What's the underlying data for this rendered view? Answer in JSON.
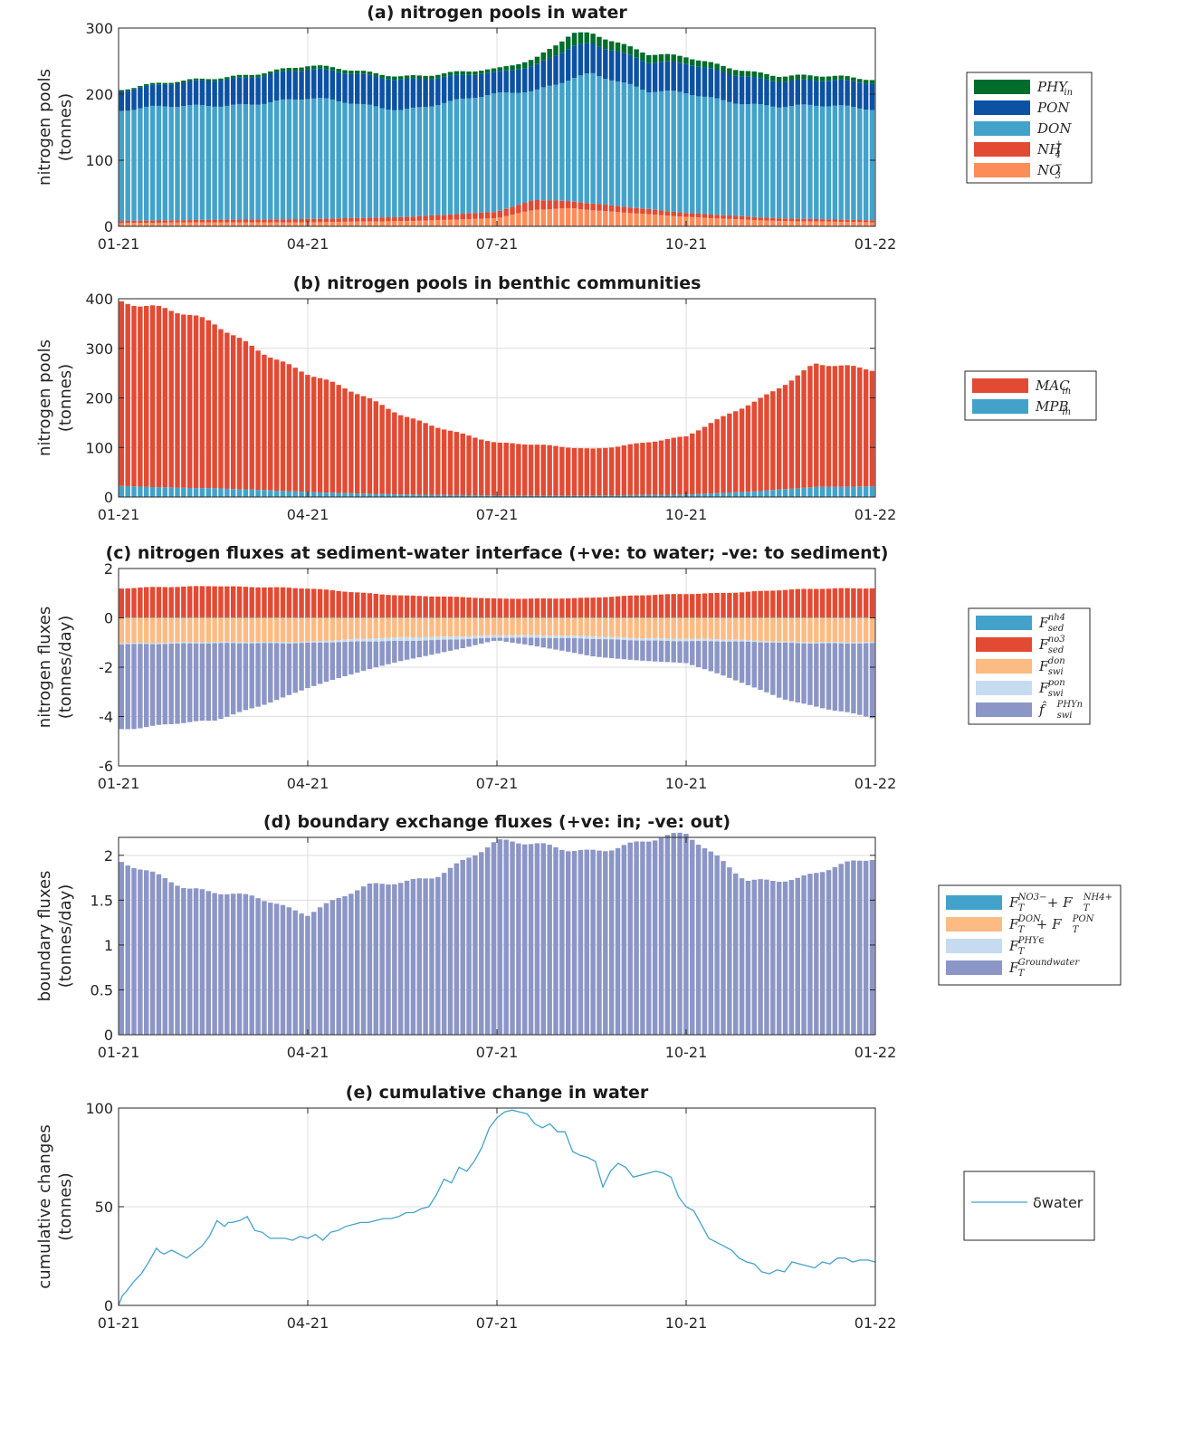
{
  "x_tick_labels": [
    "01-21",
    "04-21",
    "07-21",
    "10-21",
    "01-22"
  ],
  "chart_data": [
    {
      "id": "a",
      "type": "bar",
      "stacked": true,
      "title": "(a) nitrogen pools in water",
      "ylabel": [
        "nitrogen pools",
        "(tonnes)"
      ],
      "ylim": [
        0,
        300
      ],
      "yticks": [
        "0",
        "100",
        "200",
        "300"
      ],
      "grid": true,
      "legend_position": "right",
      "x_knots": [
        0,
        0.125,
        0.25,
        0.375,
        0.5,
        0.55,
        0.6,
        0.625,
        0.7,
        0.75,
        0.875,
        1.0
      ],
      "series": [
        {
          "name": "NO3-",
          "legend_main": "NO",
          "legend_sub": "3",
          "legend_sup": "−",
          "color": "#fc8d59",
          "values": [
            5,
            6,
            6,
            8,
            12,
            25,
            28,
            25,
            18,
            14,
            8,
            6
          ]
        },
        {
          "name": "NH4+",
          "legend_main": "NH",
          "legend_sub": "4",
          "legend_sup": "+",
          "color": "#e34a33",
          "values": [
            3,
            4,
            5,
            6,
            10,
            15,
            10,
            10,
            8,
            6,
            4,
            3
          ]
        },
        {
          "name": "DON",
          "legend_main": "DON",
          "legend_sub": "",
          "legend_sup": "",
          "color": "#43a2ca",
          "values": [
            165,
            175,
            180,
            165,
            175,
            165,
            190,
            200,
            175,
            180,
            170,
            168
          ]
        },
        {
          "name": "PON",
          "legend_main": "PON",
          "legend_sub": "",
          "legend_sup": "",
          "color": "#0c51a3",
          "values": [
            30,
            38,
            45,
            45,
            33,
            38,
            48,
            45,
            45,
            45,
            38,
            40
          ]
        },
        {
          "name": "PHYin",
          "legend_main": "PHY",
          "legend_sub": "in",
          "legend_sup": "",
          "color": "#006d2c",
          "values": [
            2,
            3,
            5,
            5,
            5,
            10,
            20,
            15,
            12,
            10,
            8,
            5
          ]
        }
      ],
      "legend_order": [
        "PHYin",
        "PON",
        "DON",
        "NH4+",
        "NO3-"
      ]
    },
    {
      "id": "b",
      "type": "bar",
      "stacked": true,
      "title": "(b) nitrogen pools in benthic communities",
      "ylabel": [
        "nitrogen pools",
        "(tonnes)"
      ],
      "ylim": [
        0,
        400
      ],
      "yticks": [
        "0",
        "100",
        "200",
        "300",
        "400"
      ],
      "grid": true,
      "legend_position": "right",
      "x_knots": [
        0,
        0.05,
        0.125,
        0.25,
        0.375,
        0.5,
        0.625,
        0.75,
        0.85,
        0.92,
        1.0
      ],
      "series": [
        {
          "name": "MPBin",
          "legend_main": "MPB",
          "legend_sub": "in",
          "legend_sup": "",
          "color": "#43a2ca",
          "values": [
            22,
            20,
            18,
            10,
            5,
            3,
            3,
            5,
            12,
            20,
            22
          ]
        },
        {
          "name": "MACin",
          "legend_main": "MAC",
          "legend_sub": "in",
          "legend_sup": "",
          "color": "#e34a33",
          "values": [
            378,
            360,
            330,
            240,
            160,
            105,
            95,
            115,
            190,
            250,
            230
          ]
        }
      ],
      "legend_order": [
        "MACin",
        "MPBin"
      ]
    },
    {
      "id": "c",
      "type": "bar",
      "stacked": true,
      "title": "(c) nitrogen fluxes at sediment-water interface (+ve: to water; -ve: to sediment)",
      "ylabel": [
        "nitrogen fluxes",
        "(tonnes/day)"
      ],
      "ylim": [
        -6,
        2
      ],
      "yticks": [
        "-6",
        "-4",
        "-2",
        "0",
        "2"
      ],
      "grid": true,
      "legend_position": "right",
      "x_knots": [
        0,
        0.125,
        0.25,
        0.375,
        0.5,
        0.625,
        0.75,
        0.875,
        1.0
      ],
      "series": [
        {
          "name": "F_sed^nh4",
          "legend_main": "F",
          "legend_sub": "sed",
          "legend_sup": "nh4",
          "color": "#43a2ca",
          "values": [
            0.02,
            0.02,
            0.02,
            0.02,
            0.02,
            0.02,
            0.02,
            0.02,
            0.02
          ]
        },
        {
          "name": "F_sed^no3",
          "legend_main": "F",
          "legend_sub": "sed",
          "legend_sup": "no3",
          "color": "#e34a33",
          "values": [
            1.15,
            1.3,
            1.15,
            0.9,
            0.75,
            0.8,
            0.95,
            1.1,
            1.2
          ]
        },
        {
          "name": "F_swi^don",
          "legend_main": "F",
          "legend_sub": "swi",
          "legend_sup": "don",
          "color": "#fdbb84",
          "values": [
            -1.0,
            -1.0,
            -0.95,
            -0.8,
            -0.7,
            -0.75,
            -0.85,
            -0.95,
            -1.0
          ]
        },
        {
          "name": "F_swi^pon",
          "legend_main": "F",
          "legend_sub": "swi",
          "legend_sup": "pon",
          "color": "#c6dbef",
          "values": [
            -0.05,
            -0.05,
            -0.05,
            -0.15,
            -0.1,
            -0.1,
            -0.1,
            -0.05,
            -0.05
          ]
        },
        {
          "name": "f_swi^PHYn",
          "legend_main": "f̂",
          "legend_sub": "swi",
          "legend_sup": "PHYn",
          "color": "#8c96c6",
          "values": [
            -3.4,
            -3.2,
            -1.8,
            -0.8,
            -0.1,
            -0.7,
            -0.9,
            -2.2,
            -3.1
          ]
        }
      ],
      "legend_order": [
        "F_sed^nh4",
        "F_sed^no3",
        "F_swi^don",
        "F_swi^pon",
        "f_swi^PHYn"
      ]
    },
    {
      "id": "d",
      "type": "bar",
      "stacked": true,
      "title": "(d) boundary exchange fluxes (+ve: in; -ve: out)",
      "ylabel": [
        "boundary fluxes",
        "(tonnes/day)"
      ],
      "ylim": [
        0,
        2.2
      ],
      "yticks": [
        "0",
        "0.5",
        "1",
        "1.5",
        "2"
      ],
      "grid": true,
      "legend_position": "right",
      "x_knots": [
        0,
        0.09,
        0.18,
        0.25,
        0.33,
        0.42,
        0.5,
        0.62,
        0.75,
        0.83,
        0.9,
        1.0
      ],
      "series": [
        {
          "name": "F_T^Groundwater",
          "legend_main": "F",
          "legend_sub": "T",
          "legend_sup": "Groundwater",
          "color": "#8c96c6",
          "values": [
            1.95,
            1.6,
            1.58,
            1.33,
            1.65,
            1.8,
            2.12,
            2.08,
            2.2,
            1.75,
            1.75,
            1.95
          ]
        }
      ],
      "legend_entries": [
        {
          "main": "F",
          "sub": "T",
          "sup": "NO3− ",
          "plus": " + F",
          "sub2": "T",
          "sup2": "NH4+",
          "color": "#43a2ca"
        },
        {
          "main": "F",
          "sub": "T",
          "sup": "DON",
          "plus": " + F",
          "sub2": "T",
          "sup2": "PON",
          "color": "#fdbb84"
        },
        {
          "main": "F",
          "sub": "T",
          "sup": "PHY∈",
          "plus": "",
          "sub2": "",
          "sup2": "",
          "color": "#c6dbef"
        },
        {
          "main": "F",
          "sub": "T",
          "sup": "Groundwater",
          "plus": "",
          "sub2": "",
          "sup2": "",
          "color": "#8c96c6"
        }
      ]
    },
    {
      "id": "e",
      "type": "line",
      "title": "(e) cumulative change in water",
      "ylabel": [
        "cumulative changes",
        "(tonnes)"
      ],
      "ylim": [
        0,
        100
      ],
      "yticks": [
        "0",
        "50",
        "100"
      ],
      "grid": true,
      "legend_position": "right",
      "series": [
        {
          "name": "δwater",
          "color": "#43a2ca",
          "x": [
            0,
            0.005,
            0.01,
            0.02,
            0.03,
            0.04,
            0.05,
            0.055,
            0.06,
            0.07,
            0.08,
            0.09,
            0.1,
            0.11,
            0.12,
            0.13,
            0.14,
            0.145,
            0.15,
            0.16,
            0.17,
            0.18,
            0.19,
            0.2,
            0.21,
            0.22,
            0.23,
            0.24,
            0.25,
            0.26,
            0.27,
            0.28,
            0.29,
            0.3,
            0.31,
            0.32,
            0.33,
            0.34,
            0.35,
            0.36,
            0.37,
            0.38,
            0.39,
            0.4,
            0.41,
            0.42,
            0.43,
            0.44,
            0.45,
            0.46,
            0.47,
            0.48,
            0.49,
            0.5,
            0.51,
            0.52,
            0.53,
            0.54,
            0.55,
            0.56,
            0.57,
            0.58,
            0.59,
            0.6,
            0.61,
            0.62,
            0.63,
            0.64,
            0.65,
            0.66,
            0.67,
            0.68,
            0.69,
            0.7,
            0.71,
            0.72,
            0.73,
            0.74,
            0.75,
            0.76,
            0.77,
            0.78,
            0.79,
            0.8,
            0.81,
            0.82,
            0.83,
            0.84,
            0.85,
            0.86,
            0.87,
            0.88,
            0.89,
            0.9,
            0.91,
            0.92,
            0.93,
            0.94,
            0.95,
            0.96,
            0.97,
            0.98,
            0.99,
            1.0
          ],
          "values": [
            0,
            5,
            7,
            12,
            16,
            22,
            29,
            27,
            26,
            28,
            26,
            24,
            27,
            30,
            35,
            43,
            40,
            42,
            42,
            43,
            45,
            38,
            37,
            34,
            34,
            34,
            33,
            35,
            34,
            36,
            33,
            37,
            38,
            40,
            41,
            42,
            42,
            43,
            44,
            44,
            45,
            47,
            47,
            49,
            50,
            56,
            64,
            62,
            70,
            68,
            73,
            80,
            90,
            95,
            98,
            99,
            98,
            97,
            92,
            90,
            92,
            88,
            88,
            78,
            76,
            75,
            73,
            60,
            68,
            72,
            70,
            65,
            66,
            67,
            68,
            67,
            65,
            55,
            50,
            48,
            41,
            34,
            32,
            30,
            28,
            24,
            22,
            21,
            17,
            16,
            18,
            17,
            22,
            21,
            20,
            19,
            22,
            21,
            24,
            24,
            22,
            23,
            23,
            22
          ]
        }
      ]
    }
  ]
}
